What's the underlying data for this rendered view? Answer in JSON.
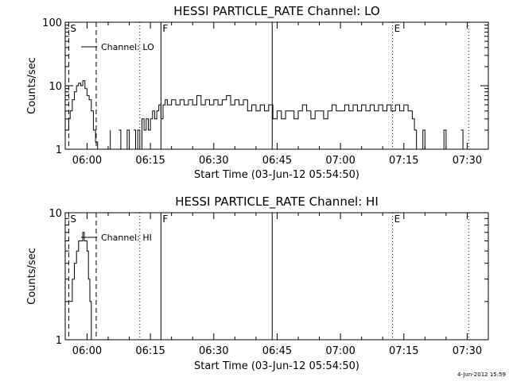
{
  "footer": {
    "date_stamp": "4-Jun-2012 15:59"
  },
  "chart_data": [
    {
      "type": "line",
      "title": "HESSI PARTICLE_RATE Channel: LO",
      "xlabel": "Start Time (03-Jun-12 05:54:50)",
      "ylabel": "Counts/sec",
      "y_scale": "log",
      "ylim": [
        1,
        100
      ],
      "xlim": [
        "05:54:50",
        "07:35:00"
      ],
      "x_ticks": [
        "06:00",
        "06:15",
        "06:30",
        "06:45",
        "07:00",
        "07:15",
        "07:30"
      ],
      "y_ticks": [
        "1",
        "10",
        "100"
      ],
      "legend": {
        "label": "Channel: LO",
        "position": "top-left"
      },
      "markers": [
        {
          "label": "S",
          "time": "05:55:40",
          "style": "dashed"
        },
        {
          "label": "",
          "time": "06:02:10",
          "style": "dashed"
        },
        {
          "label": "",
          "time": "06:12:30",
          "style": "dotted"
        },
        {
          "label": "F",
          "time": "06:17:30",
          "style": "solid"
        },
        {
          "label": "",
          "time": "06:43:50",
          "style": "solid"
        },
        {
          "label": "E",
          "time": "07:12:20",
          "style": "dotted"
        },
        {
          "label": "",
          "time": "07:30:20",
          "style": "dotted"
        }
      ],
      "series": [
        {
          "name": "Channel: LO",
          "gap_below": 1,
          "points": [
            [
              "05:55:20",
              2
            ],
            [
              "05:55:40",
              3
            ],
            [
              "05:56:00",
              4
            ],
            [
              "05:56:30",
              6
            ],
            [
              "05:57:00",
              8
            ],
            [
              "05:57:30",
              10
            ],
            [
              "05:58:00",
              11
            ],
            [
              "05:58:30",
              10
            ],
            [
              "05:59:00",
              12
            ],
            [
              "05:59:30",
              9
            ],
            [
              "06:00:00",
              7
            ],
            [
              "06:00:30",
              6
            ],
            [
              "06:01:00",
              4
            ],
            [
              "06:01:30",
              2
            ],
            [
              "06:02:00",
              1.3
            ],
            [
              "06:02:30",
              1
            ],
            [
              "06:03:30",
              1
            ],
            [
              "06:04:00",
              0.5
            ],
            [
              "06:04:30",
              1
            ],
            [
              "06:05:00",
              1
            ],
            [
              "06:05:30",
              2
            ],
            [
              "06:06:00",
              0.5
            ],
            [
              "06:06:30",
              1
            ],
            [
              "06:07:00",
              0.5
            ],
            [
              "06:07:30",
              2
            ],
            [
              "06:08:00",
              1
            ],
            [
              "06:08:30",
              0.5
            ],
            [
              "06:09:00",
              1
            ],
            [
              "06:09:30",
              2
            ],
            [
              "06:10:00",
              1
            ],
            [
              "06:10:30",
              0.5
            ],
            [
              "06:11:00",
              2
            ],
            [
              "06:11:30",
              1
            ],
            [
              "06:12:00",
              2
            ],
            [
              "06:12:30",
              1
            ],
            [
              "06:13:00",
              3
            ],
            [
              "06:13:30",
              2
            ],
            [
              "06:14:00",
              3
            ],
            [
              "06:14:30",
              2
            ],
            [
              "06:15:00",
              3
            ],
            [
              "06:15:30",
              4
            ],
            [
              "06:16:00",
              3
            ],
            [
              "06:16:30",
              4
            ],
            [
              "06:17:00",
              5
            ],
            [
              "06:17:30",
              3
            ],
            [
              "06:18:00",
              5
            ],
            [
              "06:18:30",
              6
            ],
            [
              "06:19:00",
              5
            ],
            [
              "06:20:00",
              6
            ],
            [
              "06:21:00",
              5
            ],
            [
              "06:22:00",
              6
            ],
            [
              "06:23:00",
              5
            ],
            [
              "06:24:00",
              6
            ],
            [
              "06:25:00",
              5
            ],
            [
              "06:26:00",
              7
            ],
            [
              "06:27:00",
              5
            ],
            [
              "06:28:00",
              6
            ],
            [
              "06:29:00",
              5
            ],
            [
              "06:30:00",
              6
            ],
            [
              "06:31:00",
              5
            ],
            [
              "06:32:00",
              6
            ],
            [
              "06:33:00",
              7
            ],
            [
              "06:34:00",
              5
            ],
            [
              "06:35:00",
              6
            ],
            [
              "06:36:00",
              5
            ],
            [
              "06:37:00",
              6
            ],
            [
              "06:38:00",
              4
            ],
            [
              "06:39:00",
              5
            ],
            [
              "06:40:00",
              4
            ],
            [
              "06:41:00",
              5
            ],
            [
              "06:42:00",
              4
            ],
            [
              "06:43:00",
              5
            ],
            [
              "06:44:00",
              3
            ],
            [
              "06:45:00",
              4
            ],
            [
              "06:46:00",
              3
            ],
            [
              "06:47:00",
              4
            ],
            [
              "06:48:00",
              4
            ],
            [
              "06:49:00",
              3
            ],
            [
              "06:50:00",
              4
            ],
            [
              "06:51:00",
              5
            ],
            [
              "06:52:00",
              4
            ],
            [
              "06:53:00",
              3
            ],
            [
              "06:54:00",
              4
            ],
            [
              "06:55:00",
              4
            ],
            [
              "06:56:00",
              3
            ],
            [
              "06:57:00",
              4
            ],
            [
              "06:58:00",
              5
            ],
            [
              "06:59:00",
              4
            ],
            [
              "07:00:00",
              4
            ],
            [
              "07:01:00",
              5
            ],
            [
              "07:02:00",
              4
            ],
            [
              "07:03:00",
              5
            ],
            [
              "07:04:00",
              4
            ],
            [
              "07:05:00",
              5
            ],
            [
              "07:06:00",
              4
            ],
            [
              "07:07:00",
              5
            ],
            [
              "07:08:00",
              4
            ],
            [
              "07:09:00",
              5
            ],
            [
              "07:10:00",
              4
            ],
            [
              "07:11:00",
              5
            ],
            [
              "07:12:00",
              4
            ],
            [
              "07:13:00",
              5
            ],
            [
              "07:14:00",
              4
            ],
            [
              "07:15:00",
              5
            ],
            [
              "07:16:00",
              4
            ],
            [
              "07:17:00",
              3
            ],
            [
              "07:17:30",
              2
            ],
            [
              "07:18:00",
              1
            ],
            [
              "07:18:30",
              0.5
            ],
            [
              "07:19:00",
              1
            ],
            [
              "07:19:30",
              2
            ],
            [
              "07:20:00",
              1
            ],
            [
              "07:20:30",
              0.5
            ],
            [
              "07:21:00",
              1
            ],
            [
              "07:21:30",
              1
            ],
            [
              "07:22:00",
              0.5
            ],
            [
              "07:22:30",
              1
            ],
            [
              "07:23:00",
              1
            ],
            [
              "07:23:30",
              0.5
            ],
            [
              "07:24:00",
              1
            ],
            [
              "07:24:30",
              2
            ],
            [
              "07:25:00",
              1
            ],
            [
              "07:26:00",
              1
            ],
            [
              "07:26:30",
              0.5
            ],
            [
              "07:27:00",
              1
            ],
            [
              "07:27:30",
              1
            ],
            [
              "07:28:00",
              0.5
            ],
            [
              "07:28:30",
              2
            ],
            [
              "07:29:00",
              1
            ]
          ]
        }
      ]
    },
    {
      "type": "line",
      "title": "HESSI PARTICLE_RATE Channel: HI",
      "xlabel": "Start Time (03-Jun-12 05:54:50)",
      "ylabel": "Counts/sec",
      "y_scale": "log",
      "ylim": [
        1,
        10
      ],
      "xlim": [
        "05:54:50",
        "07:35:00"
      ],
      "x_ticks": [
        "06:00",
        "06:15",
        "06:30",
        "06:45",
        "07:00",
        "07:15",
        "07:30"
      ],
      "y_ticks": [
        "1",
        "10"
      ],
      "legend": {
        "label": "Channel: HI",
        "position": "top-left"
      },
      "markers": [
        {
          "label": "S",
          "time": "05:55:40",
          "style": "dashed"
        },
        {
          "label": "",
          "time": "06:02:10",
          "style": "dashed"
        },
        {
          "label": "",
          "time": "06:12:30",
          "style": "dotted"
        },
        {
          "label": "F",
          "time": "06:17:30",
          "style": "solid"
        },
        {
          "label": "",
          "time": "06:43:50",
          "style": "solid"
        },
        {
          "label": "E",
          "time": "07:12:20",
          "style": "dotted"
        },
        {
          "label": "",
          "time": "07:30:20",
          "style": "dotted"
        }
      ],
      "series": [
        {
          "name": "Channel: HI",
          "gap_below": 1,
          "points": [
            [
              "05:55:20",
              2
            ],
            [
              "05:55:50",
              2
            ],
            [
              "05:56:10",
              2
            ],
            [
              "05:56:30",
              3
            ],
            [
              "05:57:00",
              4
            ],
            [
              "05:57:30",
              5
            ],
            [
              "05:58:00",
              6
            ],
            [
              "05:58:30",
              6
            ],
            [
              "05:59:00",
              7
            ],
            [
              "05:59:20",
              6
            ],
            [
              "05:59:40",
              6
            ],
            [
              "06:00:00",
              5
            ],
            [
              "06:00:20",
              3
            ],
            [
              "06:00:40",
              2
            ],
            [
              "06:01:00",
              1
            ]
          ]
        }
      ]
    }
  ]
}
